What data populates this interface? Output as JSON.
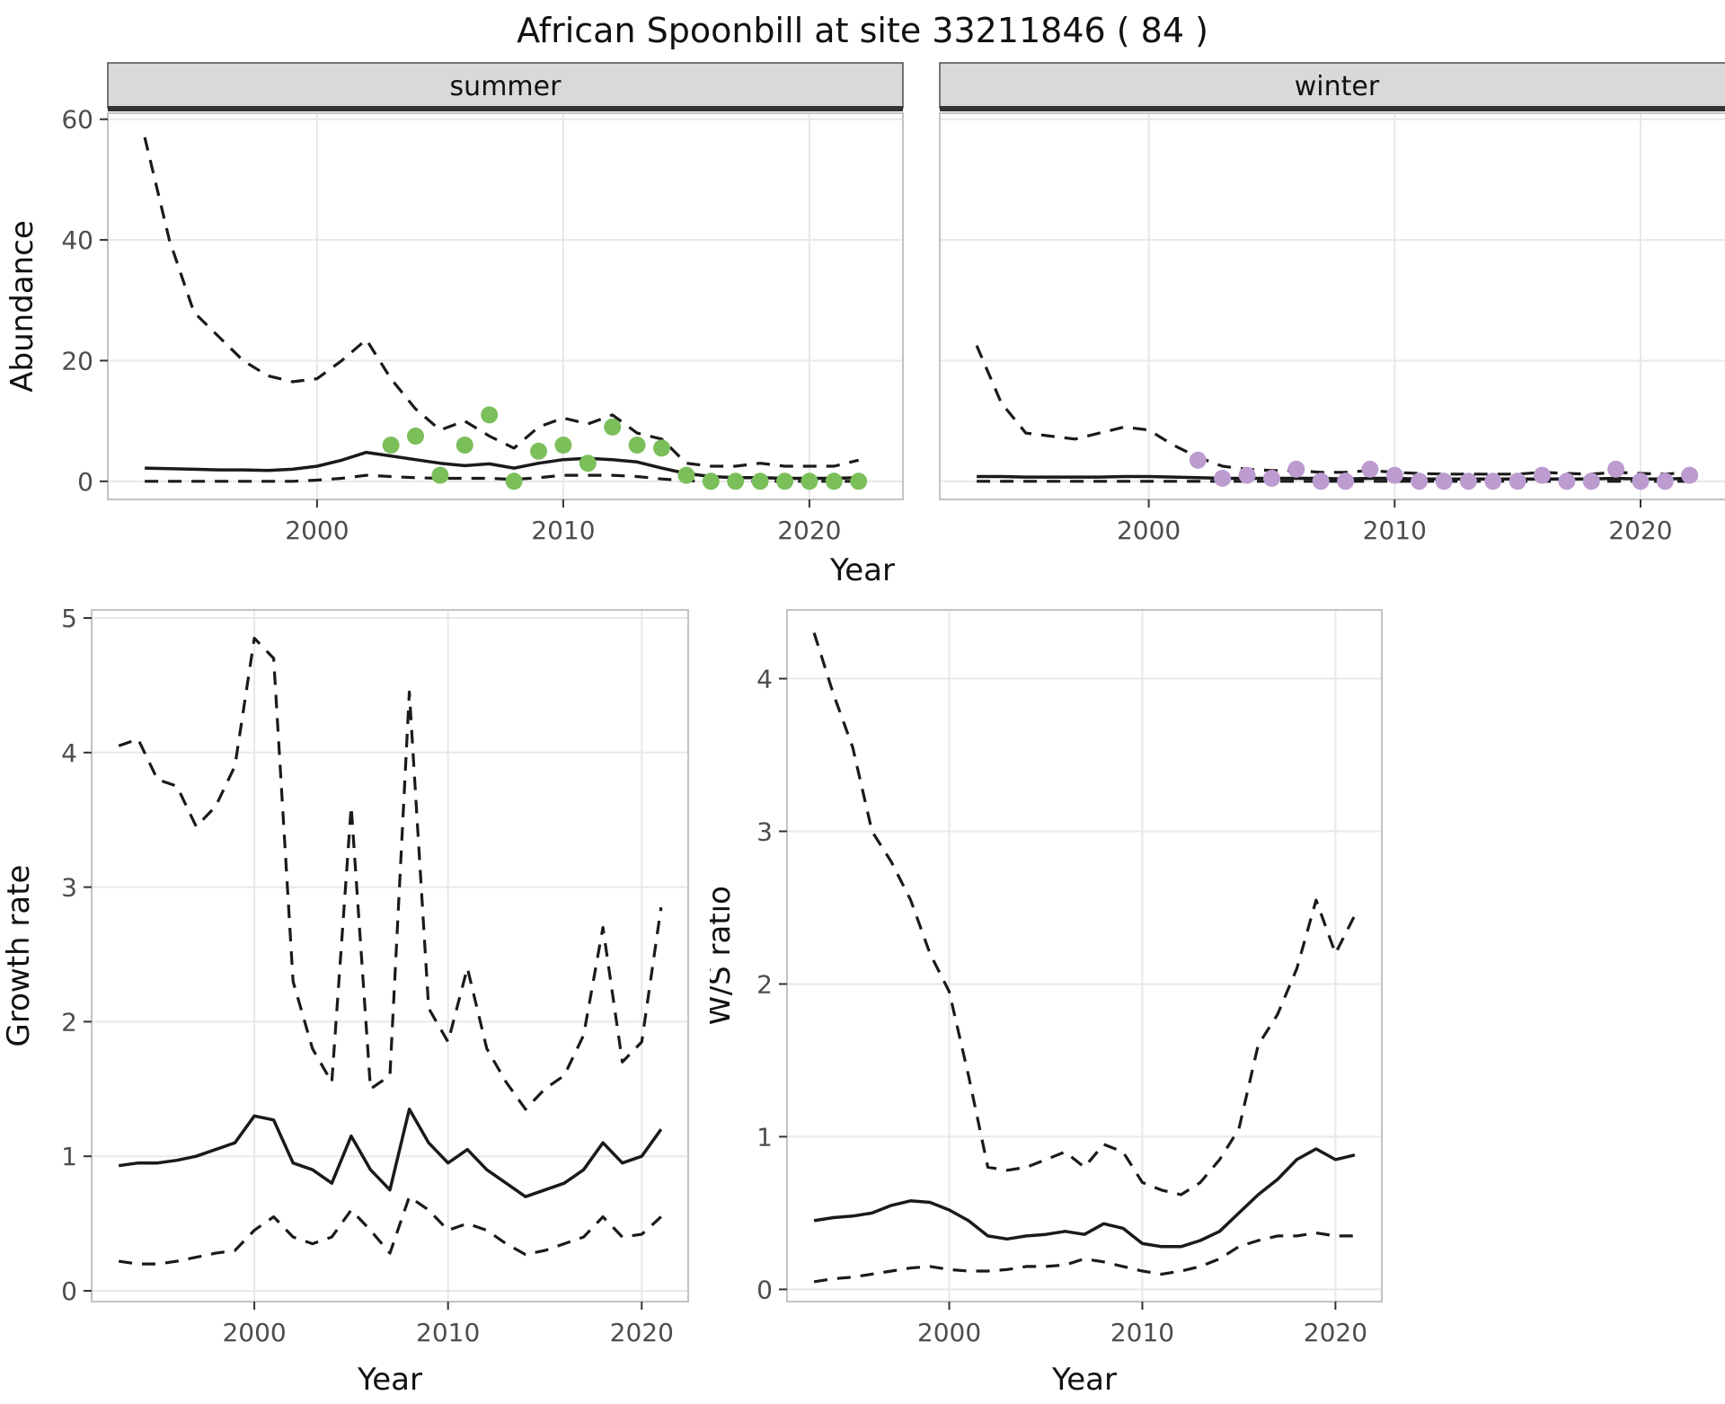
{
  "title": "African Spoonbill at site 33211846 ( 84 )",
  "labels": {
    "x": "Year"
  },
  "theme": {
    "grid": "#e8e8e8",
    "panel_border": "#c3c3c3",
    "strip_bg": "#d9d9d9",
    "strip_border": "#4d4d4d",
    "strip_underline": "#333333",
    "line": "#1a1a1a",
    "tick": "#333333",
    "summer_point_color": "#7bbf5a",
    "winter_point_color": "#bc9bd0"
  },
  "chart_data": [
    {
      "id": "abundance_summer",
      "type": "line",
      "facet_label": "summer",
      "xlabel": "Year",
      "ylabel": "Abundance",
      "xlim": [
        1991.5,
        2023.8
      ],
      "ylim": [
        -3,
        61
      ],
      "xticks": [
        2000,
        2010,
        2020
      ],
      "yticks": [
        0,
        20,
        40,
        60
      ],
      "x": [
        1993,
        1994,
        1995,
        1996,
        1997,
        1998,
        1999,
        2000,
        2001,
        2002,
        2003,
        2004,
        2005,
        2006,
        2007,
        2008,
        2009,
        2010,
        2011,
        2012,
        2013,
        2014,
        2015,
        2016,
        2017,
        2018,
        2019,
        2020,
        2021,
        2022
      ],
      "series": [
        {
          "name": "upper_95ci",
          "style": "dashed",
          "values": [
            57,
            40,
            28,
            24,
            20,
            17.5,
            16.5,
            17,
            20,
            23.5,
            17,
            12,
            8.5,
            10,
            7.5,
            5.5,
            9,
            10.5,
            9.5,
            11,
            8,
            7,
            3,
            2.5,
            2.5,
            3,
            2.5,
            2.5,
            2.5,
            3.5
          ]
        },
        {
          "name": "fitted",
          "style": "solid",
          "values": [
            2.2,
            2.1,
            2,
            1.9,
            1.9,
            1.8,
            2,
            2.5,
            3.5,
            4.8,
            4.2,
            3.6,
            3,
            2.6,
            2.9,
            2.2,
            3,
            3.6,
            3.8,
            3.6,
            3.2,
            2.2,
            1.3,
            0.8,
            0.6,
            0.6,
            0.5,
            0.5,
            0.5,
            0.6
          ]
        },
        {
          "name": "lower_95ci",
          "style": "dashed",
          "values": [
            0,
            0,
            0,
            0,
            0,
            0,
            0,
            0.2,
            0.5,
            1,
            0.8,
            0.6,
            0.5,
            0.5,
            0.5,
            0.3,
            0.6,
            1,
            1,
            1,
            0.8,
            0.4,
            0.1,
            0,
            0,
            0,
            0,
            0,
            0,
            0
          ]
        }
      ],
      "points": {
        "name": "observed_counts_summer",
        "color": "#7bbf5a",
        "x": [
          2003,
          2004,
          2005,
          2006,
          2007,
          2008,
          2009,
          2010,
          2011,
          2012,
          2013,
          2014,
          2015,
          2016,
          2017,
          2018,
          2019,
          2020,
          2021,
          2022
        ],
        "y": [
          6,
          7.5,
          1,
          6,
          11,
          0,
          5,
          6,
          3,
          9,
          6,
          5.5,
          1,
          0,
          0,
          0,
          0,
          0,
          0,
          0
        ]
      }
    },
    {
      "id": "abundance_winter",
      "type": "line",
      "facet_label": "winter",
      "xlabel": "Year",
      "ylabel": "Abundance",
      "xlim": [
        1991.5,
        2023.8
      ],
      "ylim": [
        -3,
        61
      ],
      "xticks": [
        2000,
        2010,
        2020
      ],
      "yticks": [
        0,
        20,
        40,
        60
      ],
      "x": [
        1993,
        1994,
        1995,
        1996,
        1997,
        1998,
        1999,
        2000,
        2001,
        2002,
        2003,
        2004,
        2005,
        2006,
        2007,
        2008,
        2009,
        2010,
        2011,
        2012,
        2013,
        2014,
        2015,
        2016,
        2017,
        2018,
        2019,
        2020,
        2021,
        2022
      ],
      "series": [
        {
          "name": "upper_95ci",
          "style": "dashed",
          "values": [
            22.5,
            13,
            8,
            7.5,
            7,
            8,
            9,
            8.5,
            6,
            4,
            2.5,
            2,
            1.8,
            1.8,
            1.5,
            1.5,
            1.8,
            1.5,
            1.3,
            1.2,
            1.2,
            1.2,
            1.2,
            1.5,
            1.3,
            1.2,
            1.5,
            1.3,
            1.2,
            1.5
          ]
        },
        {
          "name": "fitted",
          "style": "solid",
          "values": [
            0.8,
            0.8,
            0.7,
            0.7,
            0.7,
            0.7,
            0.8,
            0.8,
            0.7,
            0.6,
            0.5,
            0.5,
            0.5,
            0.5,
            0.5,
            0.4,
            0.5,
            0.5,
            0.4,
            0.4,
            0.4,
            0.4,
            0.4,
            0.4,
            0.4,
            0.4,
            0.5,
            0.4,
            0.4,
            0.5
          ]
        },
        {
          "name": "lower_95ci",
          "style": "dashed",
          "values": [
            0,
            0,
            0,
            0,
            0,
            0,
            0,
            0,
            0,
            0,
            0,
            0,
            0,
            0,
            0,
            0,
            0,
            0,
            0,
            0,
            0,
            0,
            0,
            0,
            0,
            0,
            0,
            0,
            0,
            0
          ]
        }
      ],
      "points": {
        "name": "observed_counts_winter",
        "color": "#bc9bd0",
        "x": [
          2002,
          2003,
          2004,
          2005,
          2006,
          2007,
          2008,
          2009,
          2010,
          2011,
          2012,
          2013,
          2014,
          2015,
          2016,
          2017,
          2018,
          2019,
          2020,
          2021,
          2022
        ],
        "y": [
          3.5,
          0.5,
          1,
          0.5,
          2,
          0,
          0,
          2,
          1,
          0,
          0,
          0,
          0,
          0,
          1,
          0,
          0,
          2,
          0,
          0,
          1
        ]
      }
    },
    {
      "id": "growth_rate",
      "type": "line",
      "facet_label": "",
      "xlabel": "Year",
      "ylabel": "Growth rate",
      "xlim": [
        1991.6,
        2022.4
      ],
      "ylim": [
        -0.08,
        5.06
      ],
      "xticks": [
        2000,
        2010,
        2020
      ],
      "yticks": [
        0,
        1,
        2,
        3,
        4,
        5
      ],
      "x": [
        1993,
        1994,
        1995,
        1996,
        1997,
        1998,
        1999,
        2000,
        2001,
        2002,
        2003,
        2004,
        2005,
        2006,
        2007,
        2008,
        2009,
        2010,
        2011,
        2012,
        2013,
        2014,
        2015,
        2016,
        2017,
        2018,
        2019,
        2020,
        2021
      ],
      "series": [
        {
          "name": "upper_95ci",
          "style": "dashed",
          "values": [
            4.05,
            4.1,
            3.8,
            3.75,
            3.45,
            3.6,
            3.9,
            4.85,
            4.7,
            2.3,
            1.8,
            1.55,
            3.6,
            1.5,
            1.6,
            4.45,
            2.1,
            1.85,
            2.4,
            1.8,
            1.55,
            1.35,
            1.5,
            1.6,
            1.9,
            2.7,
            1.7,
            1.85,
            2.85
          ]
        },
        {
          "name": "fitted",
          "style": "solid",
          "values": [
            0.93,
            0.95,
            0.95,
            0.97,
            1,
            1.05,
            1.1,
            1.3,
            1.27,
            0.95,
            0.9,
            0.8,
            1.15,
            0.9,
            0.75,
            1.35,
            1.1,
            0.95,
            1.05,
            0.9,
            0.8,
            0.7,
            0.75,
            0.8,
            0.9,
            1.1,
            0.95,
            1,
            1.2
          ]
        },
        {
          "name": "lower_95ci",
          "style": "dashed",
          "values": [
            0.22,
            0.2,
            0.2,
            0.22,
            0.25,
            0.28,
            0.3,
            0.45,
            0.55,
            0.4,
            0.35,
            0.4,
            0.6,
            0.45,
            0.28,
            0.7,
            0.6,
            0.45,
            0.5,
            0.45,
            0.35,
            0.27,
            0.3,
            0.35,
            0.4,
            0.55,
            0.4,
            0.42,
            0.55
          ]
        }
      ],
      "points": null
    },
    {
      "id": "ws_ratio",
      "type": "line",
      "facet_label": "",
      "xlabel": "Year",
      "ylabel": "W/S ratio",
      "xlim": [
        1991.6,
        2022.4
      ],
      "ylim": [
        -0.08,
        4.45
      ],
      "xticks": [
        2000,
        2010,
        2020
      ],
      "yticks": [
        0,
        1,
        2,
        3,
        4
      ],
      "x": [
        1993,
        1994,
        1995,
        1996,
        1997,
        1998,
        1999,
        2000,
        2001,
        2002,
        2003,
        2004,
        2005,
        2006,
        2007,
        2008,
        2009,
        2010,
        2011,
        2012,
        2013,
        2014,
        2015,
        2016,
        2017,
        2018,
        2019,
        2020,
        2021
      ],
      "series": [
        {
          "name": "upper_95ci",
          "style": "dashed",
          "values": [
            4.3,
            3.9,
            3.55,
            3,
            2.8,
            2.55,
            2.2,
            1.95,
            1.4,
            0.8,
            0.78,
            0.8,
            0.85,
            0.9,
            0.8,
            0.95,
            0.9,
            0.7,
            0.65,
            0.62,
            0.7,
            0.85,
            1.05,
            1.6,
            1.8,
            2.1,
            2.55,
            2.2,
            2.45
          ]
        },
        {
          "name": "fitted",
          "style": "solid",
          "values": [
            0.45,
            0.47,
            0.48,
            0.5,
            0.55,
            0.58,
            0.57,
            0.52,
            0.45,
            0.35,
            0.33,
            0.35,
            0.36,
            0.38,
            0.36,
            0.43,
            0.4,
            0.3,
            0.28,
            0.28,
            0.32,
            0.38,
            0.5,
            0.62,
            0.72,
            0.85,
            0.92,
            0.85,
            0.88
          ]
        },
        {
          "name": "lower_95ci",
          "style": "dashed",
          "values": [
            0.05,
            0.07,
            0.08,
            0.1,
            0.12,
            0.14,
            0.15,
            0.13,
            0.12,
            0.12,
            0.13,
            0.15,
            0.15,
            0.16,
            0.2,
            0.18,
            0.15,
            0.12,
            0.1,
            0.12,
            0.15,
            0.2,
            0.28,
            0.32,
            0.35,
            0.35,
            0.37,
            0.35,
            0.35
          ]
        }
      ],
      "points": null
    }
  ]
}
